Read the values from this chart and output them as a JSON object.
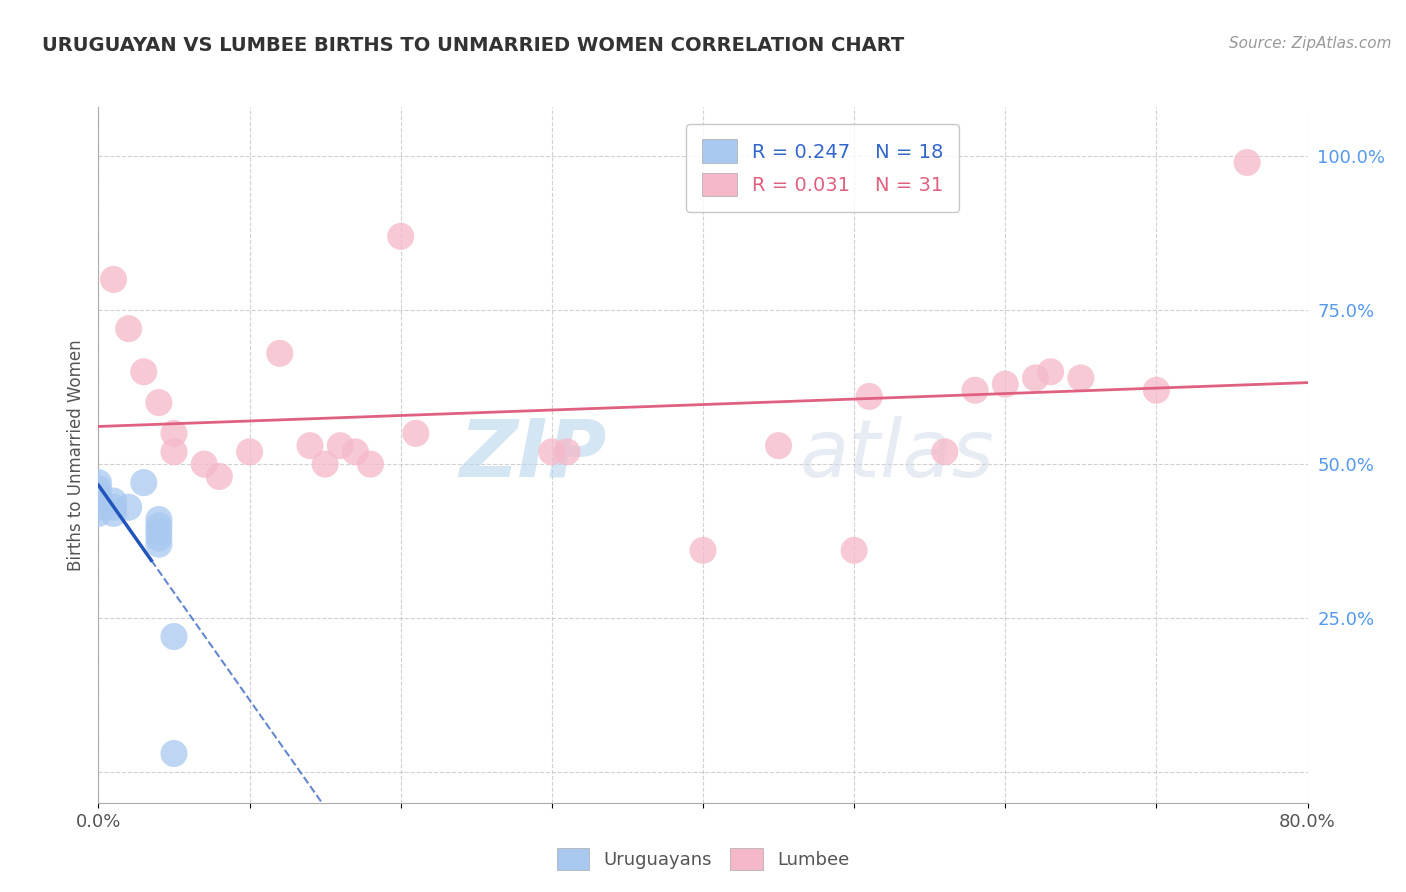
{
  "title": "URUGUAYAN VS LUMBEE BIRTHS TO UNMARRIED WOMEN CORRELATION CHART",
  "source_text": "Source: ZipAtlas.com",
  "ylabel": "Births to Unmarried Women",
  "xlim": [
    0.0,
    0.8
  ],
  "ylim": [
    -0.05,
    1.08
  ],
  "plot_ylim": [
    0.0,
    1.05
  ],
  "uruguayan_color": "#a8c8f0",
  "lumbee_color": "#f5b8c8",
  "uruguayan_line_color": "#2255bb",
  "lumbee_line_color": "#e06080",
  "legend_R_uruguayan": "R = 0.247",
  "legend_N_uruguayan": "N = 18",
  "legend_R_lumbee": "R = 0.031",
  "legend_N_lumbee": "N = 31",
  "uruguayan_points_x": [
    0.0,
    0.0,
    0.0,
    0.0,
    0.0,
    0.0,
    0.01,
    0.01,
    0.01,
    0.02,
    0.03,
    0.04,
    0.04,
    0.04,
    0.04,
    0.04,
    0.05,
    0.05
  ],
  "uruguayan_points_y": [
    0.42,
    0.43,
    0.44,
    0.45,
    0.46,
    0.47,
    0.42,
    0.43,
    0.44,
    0.43,
    0.47,
    0.37,
    0.38,
    0.39,
    0.4,
    0.41,
    0.22,
    0.03
  ],
  "lumbee_points_x": [
    0.01,
    0.02,
    0.03,
    0.04,
    0.05,
    0.05,
    0.07,
    0.08,
    0.1,
    0.12,
    0.14,
    0.15,
    0.16,
    0.17,
    0.18,
    0.2,
    0.21,
    0.3,
    0.31,
    0.4,
    0.45,
    0.5,
    0.51,
    0.56,
    0.58,
    0.6,
    0.62,
    0.63,
    0.65,
    0.7,
    0.76
  ],
  "lumbee_points_y": [
    0.8,
    0.72,
    0.65,
    0.6,
    0.55,
    0.52,
    0.5,
    0.48,
    0.52,
    0.68,
    0.53,
    0.5,
    0.53,
    0.52,
    0.5,
    0.87,
    0.55,
    0.52,
    0.52,
    0.36,
    0.53,
    0.36,
    0.61,
    0.52,
    0.62,
    0.63,
    0.64,
    0.65,
    0.64,
    0.62,
    0.99
  ],
  "watermark_zip": "ZIP",
  "watermark_atlas": "atlas",
  "background_color": "#ffffff",
  "grid_color": "#cccccc",
  "ytick_color": "#5599ee",
  "xtick_color": "#555555"
}
